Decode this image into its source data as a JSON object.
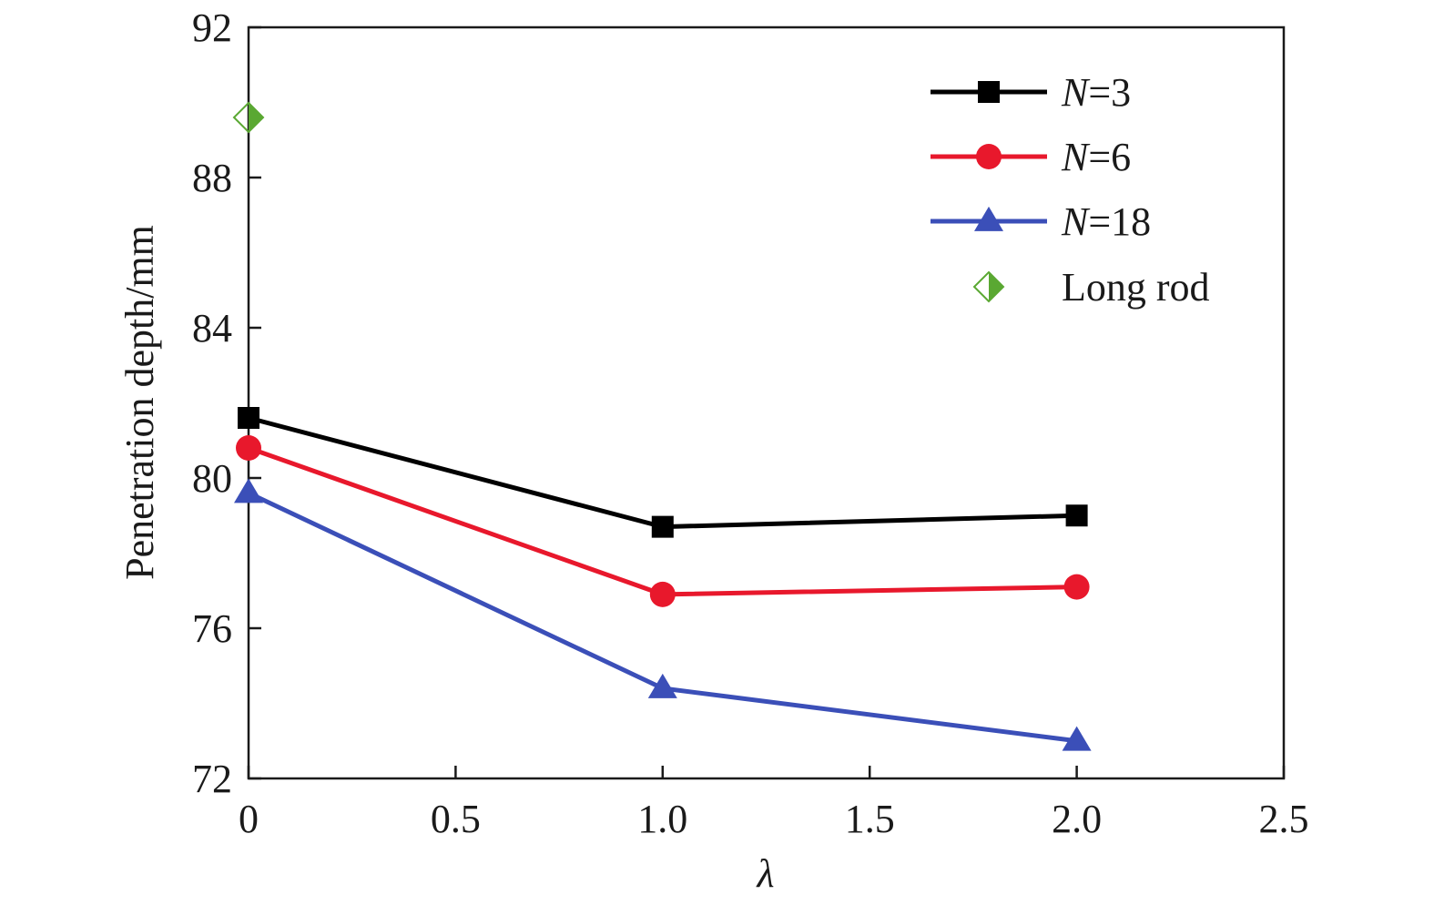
{
  "chart_data": {
    "type": "line",
    "xlabel": "λ",
    "ylabel": "Penetration depth/mm",
    "xlim": [
      0,
      2.5
    ],
    "ylim": [
      72,
      92
    ],
    "x_ticks": [
      "0",
      "0.5",
      "1.0",
      "1.5",
      "2.0",
      "2.5"
    ],
    "y_ticks": [
      "72",
      "76",
      "80",
      "84",
      "88",
      "92"
    ],
    "grid": false,
    "legend_position": "top-right",
    "x": [
      0,
      1.0,
      2.0
    ],
    "series": [
      {
        "name": "N=3",
        "name_italic": "N",
        "name_rest": "=3",
        "marker": "square",
        "color": "#000000",
        "values": [
          81.6,
          78.7,
          79.0
        ]
      },
      {
        "name": "N=6",
        "name_italic": "N",
        "name_rest": "=6",
        "marker": "circle",
        "color": "#e8182c",
        "values": [
          80.8,
          76.9,
          77.1
        ]
      },
      {
        "name": "N=18",
        "name_italic": "N",
        "name_rest": "=18",
        "marker": "triangle",
        "color": "#3b4fb8",
        "values": [
          79.6,
          74.4,
          73.0
        ]
      }
    ],
    "reference_points": [
      {
        "name": "Long rod",
        "marker": "half-filled-diamond",
        "color": "#5aa832",
        "x": 0,
        "y": 89.6
      }
    ]
  }
}
